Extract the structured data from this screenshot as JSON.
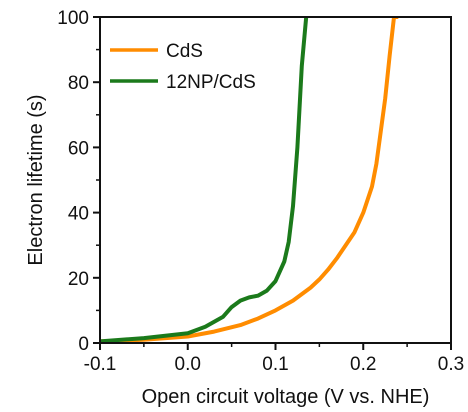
{
  "chart_data": {
    "type": "line",
    "title": "",
    "xlabel": "Open circuit voltage (V vs. NHE)",
    "ylabel": "Electron lifetime (s)",
    "xlim": [
      -0.1,
      0.3
    ],
    "ylim": [
      0,
      100
    ],
    "xticks": [
      -0.1,
      0.0,
      0.1,
      0.2,
      0.3
    ],
    "xtick_labels": [
      "-0.1",
      "0.0",
      "0.1",
      "0.2",
      "0.3"
    ],
    "yticks": [
      0,
      20,
      40,
      60,
      80,
      100
    ],
    "ytick_labels": [
      "0",
      "20",
      "40",
      "60",
      "80",
      "100"
    ],
    "grid": false,
    "legend_position": "top-left",
    "series": [
      {
        "name": "CdS",
        "color": "#ff8c00",
        "x": [
          -0.1,
          -0.05,
          0.0,
          0.03,
          0.06,
          0.08,
          0.1,
          0.12,
          0.14,
          0.15,
          0.16,
          0.17,
          0.18,
          0.19,
          0.2,
          0.21,
          0.215,
          0.22,
          0.225,
          0.23,
          0.235,
          0.24
        ],
        "y": [
          0.5,
          1,
          2,
          3.5,
          5.5,
          7.5,
          10,
          13,
          17,
          19.5,
          22.5,
          26,
          30,
          34,
          40,
          48,
          55,
          65,
          75,
          88,
          100,
          100
        ]
      },
      {
        "name": "12NP/CdS",
        "color": "#1b7a1b",
        "x": [
          -0.1,
          -0.05,
          0.0,
          0.02,
          0.04,
          0.05,
          0.06,
          0.07,
          0.08,
          0.09,
          0.1,
          0.11,
          0.115,
          0.12,
          0.125,
          0.13,
          0.135
        ],
        "y": [
          0.5,
          1.5,
          3,
          5,
          8,
          11,
          13,
          14,
          14.5,
          16,
          19,
          25,
          31,
          42,
          60,
          85,
          100
        ]
      }
    ]
  }
}
